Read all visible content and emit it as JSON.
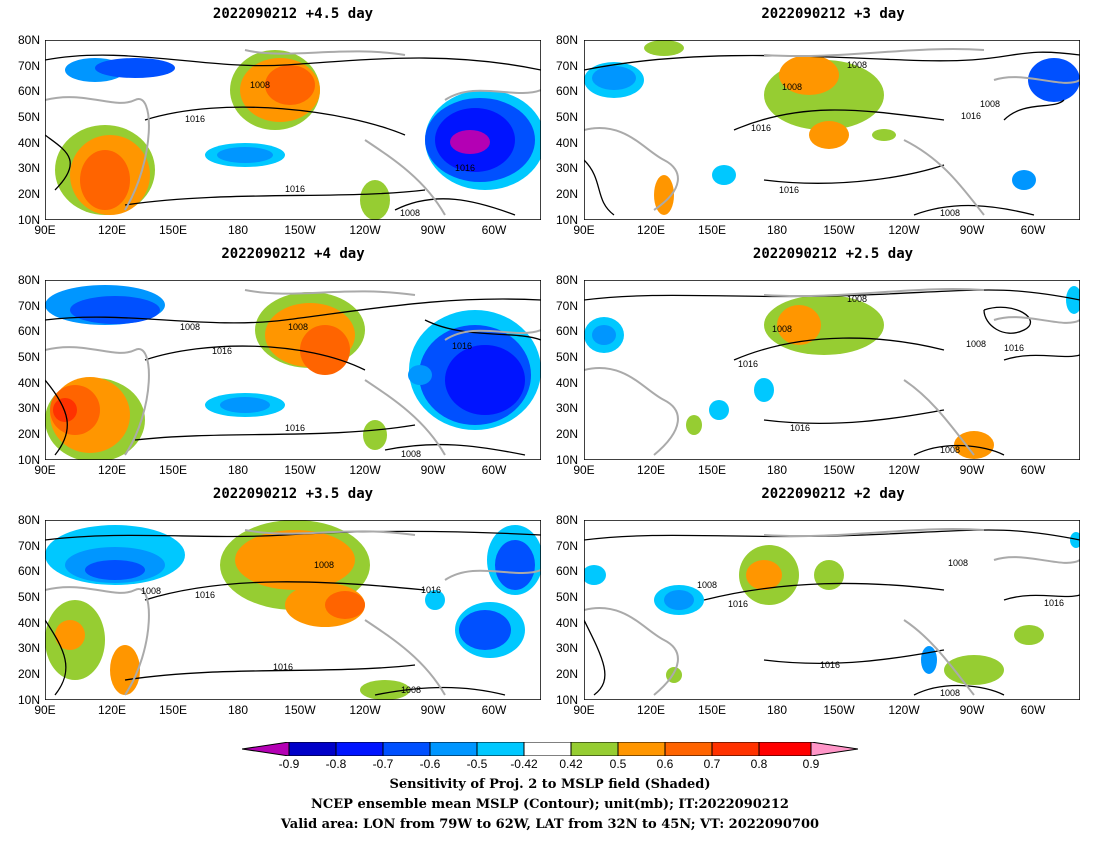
{
  "panels": [
    {
      "title": "2022090212  +4.5 day",
      "contours": [
        "1008",
        "1016",
        "1016",
        "1016",
        "1008"
      ]
    },
    {
      "title": "2022090212  +3 day",
      "contours": [
        "1008",
        "1008",
        "1016",
        "1016",
        "1008",
        "1008",
        "1016"
      ]
    },
    {
      "title": "2022090212  +4 day",
      "contours": [
        "1008",
        "1008",
        "1016",
        "1016",
        "1016",
        "1008"
      ]
    },
    {
      "title": "2022090212  +2.5 day",
      "contours": [
        "1008",
        "1008",
        "1016",
        "1016",
        "1008",
        "1016",
        "1008"
      ]
    },
    {
      "title": "2022090212  +3.5 day",
      "contours": [
        "1008",
        "1016",
        "1008",
        "1016",
        "1016",
        "1008"
      ]
    },
    {
      "title": "2022090212  +2 day",
      "contours": [
        "1008",
        "1016",
        "1008",
        "1016",
        "1016",
        "1008"
      ]
    }
  ],
  "lat_labels": [
    "80N",
    "70N",
    "60N",
    "50N",
    "40N",
    "30N",
    "20N",
    "10N"
  ],
  "lon_labels": [
    "90E",
    "120E",
    "150E",
    "180",
    "150W",
    "120W",
    "90W",
    "60W"
  ],
  "colorbar": {
    "labels": [
      "-0.9",
      "-0.8",
      "-0.7",
      "-0.6",
      "-0.5",
      "-0.42",
      "0.42",
      "0.5",
      "0.6",
      "0.7",
      "0.8",
      "0.9"
    ],
    "colors": [
      "#b400b4",
      "#0000c8",
      "#0014ff",
      "#0050ff",
      "#0096ff",
      "#00c8ff",
      "#ffffff",
      "#96cd32",
      "#ff9600",
      "#ff6400",
      "#ff3200",
      "#ff0000",
      "#ff96c8"
    ]
  },
  "caption": {
    "line1": "Sensitivity of Proj. 2 to MSLP field (Shaded)",
    "line2": "NCEP ensemble mean MSLP (Contour); unit(mb); IT:2022090212",
    "line3": "Valid area: LON from 79W to 62W, LAT from 32N to 45N; VT: 2022090700"
  }
}
